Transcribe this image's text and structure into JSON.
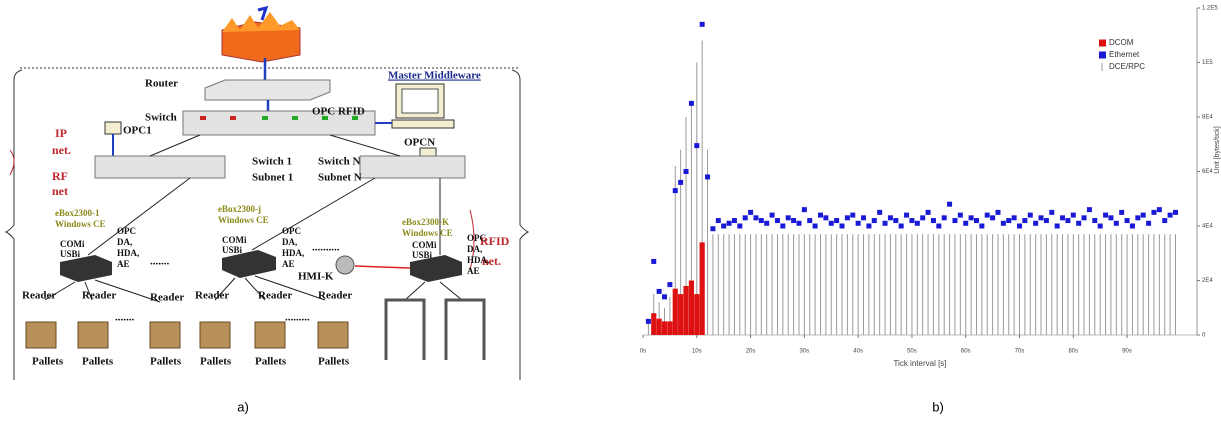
{
  "diagram": {
    "router": "Router",
    "master_middleware": "Master Middleware",
    "opc_rfid": "OPC RFID",
    "switch": "Switch",
    "opc1": "OPC1",
    "opcn": "OPCN",
    "ip_net": [
      "IP",
      "net."
    ],
    "rf_net": [
      "RF",
      "net"
    ],
    "rfid_net": [
      "RFID",
      "net."
    ],
    "switch1": [
      "Switch 1",
      "Subnet 1"
    ],
    "switchn": [
      "Switch N",
      "Subnet N"
    ],
    "eboxes": [
      {
        "name": "eBox2300-1",
        "os": "Windows CE",
        "ports": [
          "COMi",
          "USBi"
        ],
        "opc": [
          "OPC",
          "DA,",
          "HDA,",
          "AE"
        ]
      },
      {
        "name": "eBox2300-j",
        "os": "Windows CE",
        "ports": [
          "COMi",
          "USBi"
        ],
        "opc": [
          "OPC",
          "DA,",
          "HDA,",
          "AE"
        ]
      },
      {
        "name": "eBox2300-K",
        "os": "Windows CE",
        "ports": [
          "COMi",
          "USBi"
        ],
        "opc": [
          "OPC",
          "DA,",
          "HDA,",
          "AE"
        ]
      }
    ],
    "hmi": "HMI-K",
    "dots": [
      ".......",
      "..........",
      ".......",
      "........."
    ],
    "readers": [
      "Reader",
      "Reader",
      "Reader",
      "Reader",
      "Reader",
      "Reader"
    ],
    "pallets": [
      "Pallets",
      "Pallets",
      "Pallets",
      "Pallets",
      "Pallets",
      "Pallets"
    ]
  },
  "captions": [
    "a)",
    "b)"
  ],
  "chart_data": {
    "type": "combo",
    "xlabel": "Tick interval [s]",
    "ylabel": "Unit [bytes/tick]",
    "xlim": [
      0,
      103
    ],
    "ylim": [
      0,
      120000
    ],
    "xticks": [
      {
        "value": 0,
        "label": "0s"
      },
      {
        "value": 10,
        "label": "10s"
      },
      {
        "value": 20,
        "label": "20s"
      },
      {
        "value": 30,
        "label": "30s"
      },
      {
        "value": 40,
        "label": "40s"
      },
      {
        "value": 50,
        "label": "50s"
      },
      {
        "value": 60,
        "label": "60s"
      },
      {
        "value": 70,
        "label": "70s"
      },
      {
        "value": 80,
        "label": "80s"
      },
      {
        "value": 90,
        "label": "90s"
      }
    ],
    "yticks": [
      {
        "value": 0,
        "label": "0"
      },
      {
        "value": 20000,
        "label": "2E4"
      },
      {
        "value": 40000,
        "label": "4E4"
      },
      {
        "value": 60000,
        "label": "6E4"
      },
      {
        "value": 80000,
        "label": "8E4"
      },
      {
        "value": 100000,
        "label": "1E5"
      },
      {
        "value": 120000,
        "label": "1.2E5"
      }
    ],
    "legend": "upper right",
    "x": [
      1,
      2,
      3,
      4,
      5,
      6,
      7,
      8,
      9,
      10,
      11,
      12,
      13,
      14,
      15,
      16,
      17,
      18,
      19,
      20,
      21,
      22,
      23,
      24,
      25,
      26,
      27,
      28,
      29,
      30,
      31,
      32,
      33,
      34,
      35,
      36,
      37,
      38,
      39,
      40,
      41,
      42,
      43,
      44,
      45,
      46,
      47,
      48,
      49,
      50,
      51,
      52,
      53,
      54,
      55,
      56,
      57,
      58,
      59,
      60,
      61,
      62,
      63,
      64,
      65,
      66,
      67,
      68,
      69,
      70,
      71,
      72,
      73,
      74,
      75,
      76,
      77,
      78,
      79,
      80,
      81,
      82,
      83,
      84,
      85,
      86,
      87,
      88,
      89,
      90,
      91,
      92,
      93,
      94,
      95,
      96,
      97,
      98,
      99
    ],
    "series": [
      {
        "name": "DCOM",
        "type": "bar",
        "color": "#dd1111",
        "values": [
          null,
          8000,
          6000,
          5000,
          5000,
          17000,
          15000,
          18000,
          20000,
          15000,
          34000,
          null,
          null,
          null,
          null,
          null,
          null,
          null,
          null,
          null,
          null,
          null,
          null,
          null,
          null,
          null,
          null,
          null,
          null,
          null,
          null,
          null,
          null,
          null,
          null,
          null,
          null,
          null,
          null,
          null,
          null,
          null,
          null,
          null,
          null,
          null,
          null,
          null,
          null,
          null,
          null,
          null,
          null,
          null,
          null,
          null,
          null,
          null,
          null,
          null,
          null,
          null,
          null,
          null,
          null,
          null,
          null,
          null,
          null,
          null,
          null,
          null,
          null,
          null,
          null,
          null,
          null,
          null,
          null,
          null,
          null,
          null,
          null,
          null,
          null,
          null,
          null,
          null,
          null,
          null,
          null,
          null,
          null,
          null,
          null,
          null,
          null,
          null,
          null
        ]
      },
      {
        "name": "Ethernet",
        "type": "scatter",
        "color": "#1a1ad6",
        "values": [
          5000,
          27000,
          16000,
          14000,
          18500,
          53000,
          56000,
          60000,
          85000,
          69500,
          114000,
          58000,
          39000,
          42000,
          40000,
          41000,
          42000,
          40000,
          43000,
          45000,
          43000,
          42000,
          41000,
          44000,
          42000,
          40000,
          43000,
          42000,
          41000,
          46000,
          42000,
          40000,
          44000,
          43000,
          41000,
          42000,
          40000,
          43000,
          44000,
          41000,
          43000,
          40000,
          42000,
          45000,
          41000,
          43000,
          42000,
          40000,
          44000,
          42000,
          41000,
          43000,
          45000,
          42000,
          40000,
          43000,
          48000,
          42000,
          44000,
          41000,
          43000,
          42000,
          40000,
          44000,
          43000,
          45000,
          41000,
          42000,
          43000,
          40000,
          42000,
          44000,
          41000,
          43000,
          42000,
          45000,
          40000,
          43000,
          42000,
          44000,
          41000,
          43000,
          46000,
          42000,
          40000,
          44000,
          43000,
          41000,
          45000,
          42000,
          40000,
          43000,
          44000,
          41000,
          45000,
          46000,
          42000,
          44000,
          45000
        ]
      },
      {
        "name": "DCE/RPC",
        "type": "stem",
        "color": "#9a9a9a",
        "values": [
          5000,
          15000,
          12000,
          10000,
          14000,
          62000,
          68000,
          80000,
          86000,
          100000,
          108000,
          68000,
          37000,
          37000,
          37000,
          37000,
          37000,
          37000,
          37000,
          37000,
          37000,
          37000,
          37000,
          37000,
          37000,
          37000,
          37000,
          37000,
          37000,
          37000,
          37000,
          37000,
          37000,
          37000,
          37000,
          37000,
          37000,
          37000,
          37000,
          37000,
          37000,
          37000,
          37000,
          37000,
          37000,
          37000,
          37000,
          37000,
          37000,
          37000,
          37000,
          37000,
          37000,
          37000,
          37000,
          37000,
          37000,
          37000,
          37000,
          37000,
          37000,
          37000,
          37000,
          37000,
          37000,
          37000,
          37000,
          37000,
          37000,
          37000,
          37000,
          37000,
          37000,
          37000,
          37000,
          37000,
          37000,
          37000,
          37000,
          37000,
          37000,
          37000,
          37000,
          37000,
          37000,
          37000,
          37000,
          37000,
          37000,
          37000,
          37000,
          37000,
          37000,
          37000,
          37000,
          37000,
          37000,
          37000,
          37000
        ]
      }
    ]
  }
}
